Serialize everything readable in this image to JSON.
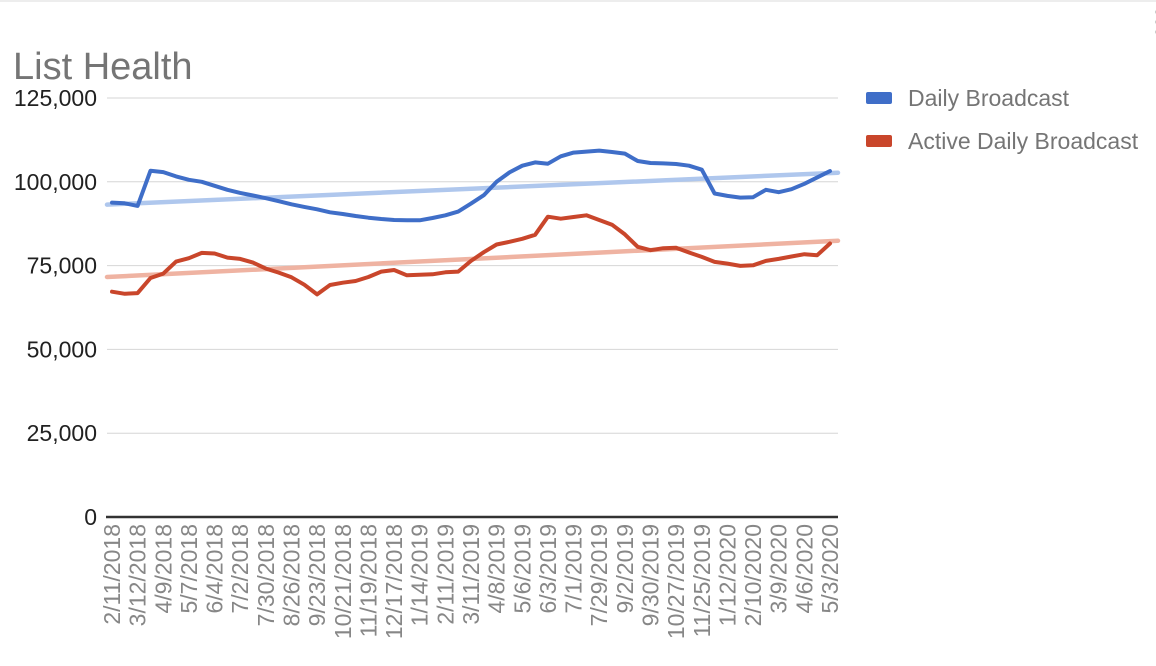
{
  "chart_data": {
    "type": "line",
    "title": "List Health",
    "x_labels": [
      "2/11/2018",
      "3/12/2018",
      "4/9/2018",
      "5/7/2018",
      "6/4/2018",
      "7/2/2018",
      "7/30/2018",
      "8/26/2018",
      "9/23/2018",
      "10/21/2018",
      "11/19/2018",
      "12/17/2018",
      "1/14/2019",
      "2/11/2019",
      "3/11/2019",
      "4/8/2019",
      "5/6/2019",
      "6/3/2019",
      "7/1/2019",
      "7/29/2019",
      "9/2/2019",
      "9/30/2019",
      "10/27/2019",
      "11/25/2019",
      "1/12/2020",
      "2/10/2020",
      "3/9/2020",
      "4/6/2020",
      "5/3/2020"
    ],
    "ylim": [
      0,
      125000
    ],
    "yticks": [
      0,
      25000,
      50000,
      75000,
      100000,
      125000
    ],
    "ytick_labels": [
      "0",
      "25,000",
      "50,000",
      "75,000",
      "100,000",
      "125,000"
    ],
    "grid": true,
    "legend_position": "right",
    "series": [
      {
        "name": "Daily Broadcast",
        "color": "#3F6EC8",
        "values": [
          93800,
          93600,
          92800,
          103300,
          102900,
          101600,
          100600,
          100000,
          98800,
          97600,
          96700,
          95900,
          95100,
          94200,
          93300,
          92500,
          91800,
          90900,
          90400,
          89800,
          89300,
          88900,
          88600,
          88500,
          88500,
          89200,
          90000,
          91100,
          93500,
          96000,
          100000,
          102800,
          104800,
          105800,
          105400,
          107600,
          108700,
          109000,
          109300,
          108900,
          108400,
          106200,
          105600,
          105500,
          105300,
          104800,
          103600,
          96500,
          95800,
          95300,
          95400,
          97600,
          96900,
          97800,
          99400,
          101300,
          103200
        ]
      },
      {
        "name": "Active Daily Broadcast",
        "color": "#C9462B",
        "values": [
          67200,
          66600,
          66800,
          71300,
          72600,
          76200,
          77200,
          78800,
          78600,
          77400,
          77000,
          75900,
          74100,
          72900,
          71500,
          69300,
          66400,
          69200,
          69900,
          70400,
          71600,
          73200,
          73700,
          72100,
          72300,
          72400,
          73000,
          73200,
          76400,
          79000,
          81300,
          82100,
          83000,
          84200,
          89600,
          89000,
          89500,
          90000,
          88600,
          87200,
          84300,
          80600,
          79600,
          80200,
          80300,
          78900,
          77600,
          76100,
          75600,
          74900,
          75100,
          76400,
          77000,
          77700,
          78400,
          78100,
          81600
        ]
      }
    ],
    "trendlines": [
      {
        "series": "Daily Broadcast",
        "color": "#AFC7ED",
        "start": 93200,
        "end": 102700
      },
      {
        "series": "Active Daily Broadcast",
        "color": "#EFB3A2",
        "start": 71600,
        "end": 82400
      }
    ],
    "axis_color": "#333333",
    "grid_color": "#d6d6d6",
    "ytick_color": "#212121",
    "xtick_color": "#878787",
    "title_color": "#757575"
  },
  "menu": {
    "icon": "kebab-menu",
    "color": "#9e9e9e"
  }
}
